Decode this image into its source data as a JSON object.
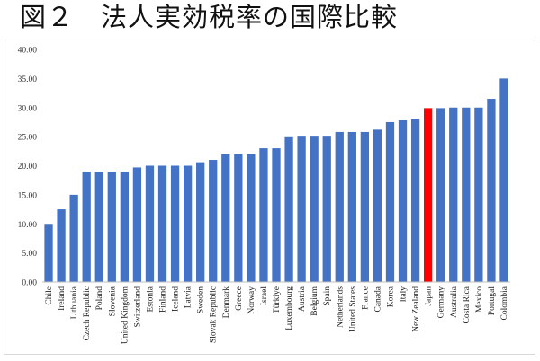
{
  "title": "図２　法人実効税率の国際比較",
  "chart_data": {
    "type": "bar",
    "categories": [
      "Chile",
      "Ireland",
      "Lithuania",
      "Czech Republic",
      "Poland",
      "Slovenia",
      "United Kingdom",
      "Switzerland",
      "Estonia",
      "Finland",
      "Iceland",
      "Latvia",
      "Sweden",
      "Slovak Republic",
      "Denmark",
      "Greece",
      "Norway",
      "Israel",
      "Türkiye",
      "Luxembourg",
      "Austria",
      "Belgium",
      "Spain",
      "Netherlands",
      "United States",
      "France",
      "Canada",
      "Korea",
      "Italy",
      "New Zealand",
      "Japan",
      "Germany",
      "Australia",
      "Costa Rica",
      "Mexico",
      "Portugal",
      "Colombia"
    ],
    "values": [
      10.0,
      12.5,
      15.0,
      19.0,
      19.0,
      19.0,
      19.0,
      19.7,
      20.0,
      20.0,
      20.0,
      20.0,
      20.6,
      21.0,
      22.0,
      22.0,
      22.0,
      23.0,
      23.0,
      24.9,
      25.0,
      25.0,
      25.0,
      25.8,
      25.8,
      25.8,
      26.2,
      27.5,
      27.8,
      28.0,
      29.9,
      29.9,
      30.0,
      30.0,
      30.0,
      31.5,
      35.0
    ],
    "highlight": "Japan",
    "bar_color": "#4472C4",
    "highlight_color": "#FF0000",
    "ylim": [
      0,
      40
    ],
    "yticks": [
      "0.00",
      "5.00",
      "10.00",
      "15.00",
      "20.00",
      "25.00",
      "30.00",
      "35.00",
      "40.00"
    ],
    "grid": false,
    "xlabel": "",
    "ylabel": ""
  }
}
